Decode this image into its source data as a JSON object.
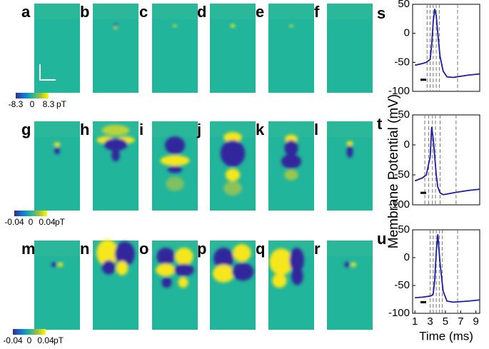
{
  "panel_labels": [
    "a",
    "b",
    "c",
    "d",
    "e",
    "f",
    "g",
    "h",
    "i",
    "j",
    "k",
    "l",
    "m",
    "n",
    "o",
    "p",
    "q",
    "r"
  ],
  "colorbars": [
    {
      "ticks": [
        -8.3,
        0,
        8.3
      ],
      "unit": "pT"
    },
    {
      "ticks": [
        -0.04,
        0,
        0.04
      ],
      "unit": "pT"
    },
    {
      "ticks": [
        -0.04,
        0,
        0.04
      ],
      "unit": "pT"
    }
  ],
  "chart_data": [
    {
      "type": "line",
      "label": "s",
      "xlim": [
        0.7,
        9.5
      ],
      "ylim": [
        -100,
        50
      ],
      "yticks": [
        -100,
        -50,
        0,
        50
      ],
      "x": [
        1,
        2,
        2.5,
        3,
        3.2,
        3.4,
        3.6,
        3.8,
        4.0,
        4.3,
        4.7,
        5.2,
        6,
        7,
        8,
        9.5
      ],
      "series": [
        {
          "color": "#1c1ca8",
          "values": [
            -55,
            -52,
            -50,
            -45,
            -20,
            20,
            42,
            30,
            0,
            -40,
            -65,
            -75,
            -76,
            -74,
            -72,
            -70
          ]
        }
      ],
      "markers": [
        2.6,
        3.0,
        3.4,
        3.8,
        4.2,
        6.6
      ]
    },
    {
      "type": "line",
      "label": "t",
      "ylabel": "Membrane Potential (mV)",
      "xlim": [
        0.7,
        9.5
      ],
      "ylim": [
        -100,
        50
      ],
      "yticks": [
        -100,
        -50,
        0,
        50
      ],
      "x": [
        1,
        2,
        2.5,
        3,
        3.2,
        3.4,
        3.6,
        3.8,
        4.0,
        4.3,
        4.7,
        5.2,
        6,
        7,
        8,
        9.5
      ],
      "series": [
        {
          "color": "#1c1ca8",
          "values": [
            -60,
            -55,
            -50,
            -20,
            30,
            10,
            -20,
            -50,
            -70,
            -80,
            -83,
            -82,
            -80,
            -78,
            -76,
            -74
          ]
        }
      ],
      "markers": [
        2.3,
        2.8,
        3.3,
        3.7,
        4.3,
        6.4
      ]
    },
    {
      "type": "line",
      "label": "u",
      "xlabel": "Time (ms)",
      "xlim": [
        0.7,
        9.5
      ],
      "ylim": [
        -100,
        50
      ],
      "yticks": [
        -100,
        -50,
        0,
        50
      ],
      "xticks": [
        1,
        3,
        5,
        7,
        9
      ],
      "x": [
        1,
        2,
        2.5,
        3,
        3.2,
        3.4,
        3.6,
        3.8,
        4.0,
        4.3,
        4.7,
        5.2,
        6,
        7,
        8,
        9.5
      ],
      "series": [
        {
          "color": "#1c1ca8",
          "values": [
            -72,
            -71,
            -70,
            -69,
            -68,
            -65,
            -40,
            10,
            42,
            -10,
            -60,
            -78,
            -80,
            -79,
            -78,
            -76
          ]
        }
      ],
      "markers": [
        3.0,
        3.4,
        3.8,
        4.2,
        4.6,
        6.6
      ]
    }
  ]
}
